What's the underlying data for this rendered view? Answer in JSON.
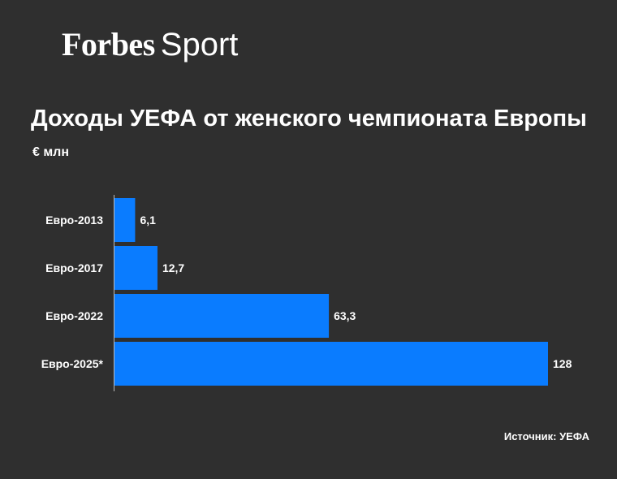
{
  "logo": {
    "brand": "Forbes",
    "section": "Sport"
  },
  "chart_data": {
    "type": "bar",
    "orientation": "horizontal",
    "title": "Доходы УЕФА от женского чемпионата Европы",
    "unit": "€ млн",
    "categories": [
      "Евро-2013",
      "Евро-2017",
      "Евро-2022",
      "Евро-2025*"
    ],
    "values": [
      6.1,
      12.7,
      63.3,
      128
    ],
    "value_labels": [
      "6,1",
      "12,7",
      "63,3",
      "128"
    ],
    "xlim": [
      0,
      128
    ],
    "grid": false,
    "bar_color": "#0a7cff",
    "source": "Источник: УЕФА"
  },
  "colors": {
    "background": "#2f2f2f",
    "text": "#ffffff",
    "bar": "#0a7cff"
  }
}
